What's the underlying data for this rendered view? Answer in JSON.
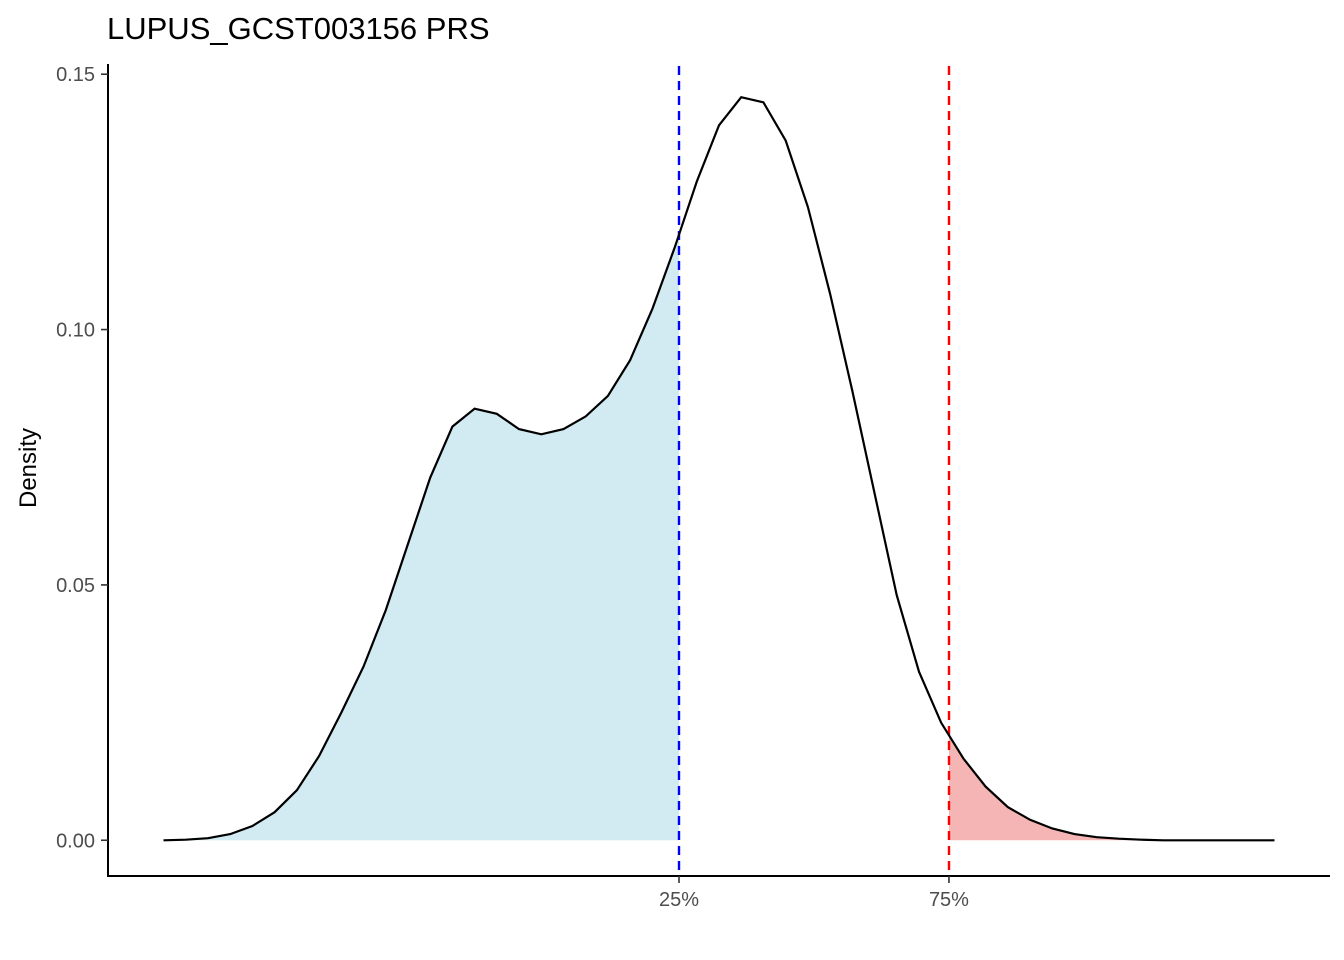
{
  "chart_data": {
    "type": "area",
    "title": "LUPUS_GCST003156 PRS",
    "xlabel": "",
    "ylabel": "Density",
    "ylim": [
      -0.007,
      0.152
    ],
    "xlim": [
      -0.05,
      1.05
    ],
    "y_ticks": [
      "0.00",
      "0.05",
      "0.10",
      "0.15"
    ],
    "y_tick_values": [
      0.0,
      0.05,
      0.1,
      0.15
    ],
    "x_ticks": [
      "25%",
      "75%"
    ],
    "x_tick_values": [
      0.464,
      0.707
    ],
    "grid": false,
    "series": [
      {
        "x": [
          0.0,
          0.02,
          0.04,
          0.06,
          0.08,
          0.1,
          0.12,
          0.14,
          0.16,
          0.18,
          0.2,
          0.22,
          0.24,
          0.26,
          0.28,
          0.3,
          0.32,
          0.34,
          0.36,
          0.38,
          0.4,
          0.42,
          0.44,
          0.46,
          0.48,
          0.5,
          0.52,
          0.54,
          0.56,
          0.58,
          0.6,
          0.62,
          0.64,
          0.66,
          0.68,
          0.7,
          0.72,
          0.74,
          0.76,
          0.78,
          0.8,
          0.82,
          0.84,
          0.86,
          0.88,
          0.9,
          0.92,
          0.94,
          0.96,
          0.98,
          1.0
        ],
        "y": [
          0.0,
          0.0001,
          0.0004,
          0.0012,
          0.0028,
          0.0055,
          0.0098,
          0.0165,
          0.025,
          0.034,
          0.045,
          0.058,
          0.071,
          0.081,
          0.0845,
          0.0835,
          0.0805,
          0.0795,
          0.0805,
          0.083,
          0.087,
          0.094,
          0.104,
          0.116,
          0.129,
          0.14,
          0.1455,
          0.1445,
          0.137,
          0.124,
          0.107,
          0.088,
          0.068,
          0.048,
          0.033,
          0.023,
          0.016,
          0.0105,
          0.0065,
          0.004,
          0.0023,
          0.0012,
          0.0006,
          0.0003,
          0.0001,
          0.0,
          0.0,
          0.0,
          0.0,
          0.0,
          0.0
        ]
      }
    ],
    "shaded_regions": [
      {
        "from": 0.0,
        "to": 0.464,
        "color": "#add8e6",
        "opacity": 0.55
      },
      {
        "from": 0.707,
        "to": 1.0,
        "color": "#f08080",
        "opacity": 0.58
      }
    ],
    "vlines": [
      {
        "x": 0.464,
        "color": "#0000ff",
        "style": "dashed"
      },
      {
        "x": 0.707,
        "color": "#ff0000",
        "style": "dashed"
      }
    ],
    "curve_color": "#000000"
  }
}
